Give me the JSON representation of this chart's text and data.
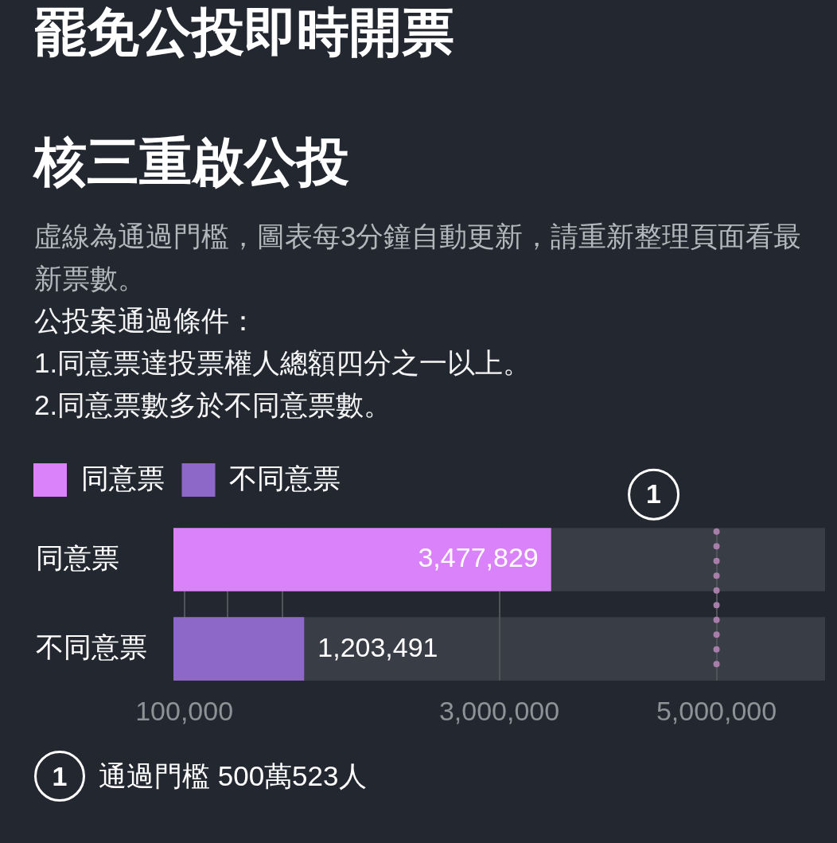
{
  "chart_data": {
    "type": "bar",
    "orientation": "horizontal",
    "stacked": true,
    "title": "罷免公投即時開票",
    "subtitle": "核三重啟公投",
    "annotations": [
      "虛線為通過門檻，圖表每3分鐘自動更新，請重新整理頁面看最新票數。",
      "公投案通過條件：",
      "1.同意票達投票權人總額四分之一以上。",
      "2.同意票數多於不同意票數。",
      "1",
      "通過門檻 500萬523人"
    ],
    "categories": [
      "同意票",
      "不同意票"
    ],
    "series": [
      {
        "name": "同意票",
        "color": "#d982fa",
        "values": [
          3477829,
          null
        ],
        "value_labels": [
          "3,477,829",
          null
        ]
      },
      {
        "name": "不同意票",
        "color": "#8d68c8",
        "values": [
          null,
          1203491
        ],
        "value_labels": [
          null,
          "1,203,491"
        ]
      }
    ],
    "xlim": [
      0,
      6000000
    ],
    "xticks": [
      {
        "value": 100000,
        "label": "100,000"
      },
      {
        "value": 500000,
        "label": null
      },
      {
        "value": 1000000,
        "label": null
      },
      {
        "value": 3000000,
        "label": "3,000,000"
      },
      {
        "value": 5000000,
        "label": "5,000,000"
      }
    ],
    "ref_lines": [
      {
        "axis": "x",
        "value": 5000523,
        "color": "#a77ea9",
        "line_style": "dotted"
      }
    ],
    "grid": "x",
    "legend": "top left"
  }
}
